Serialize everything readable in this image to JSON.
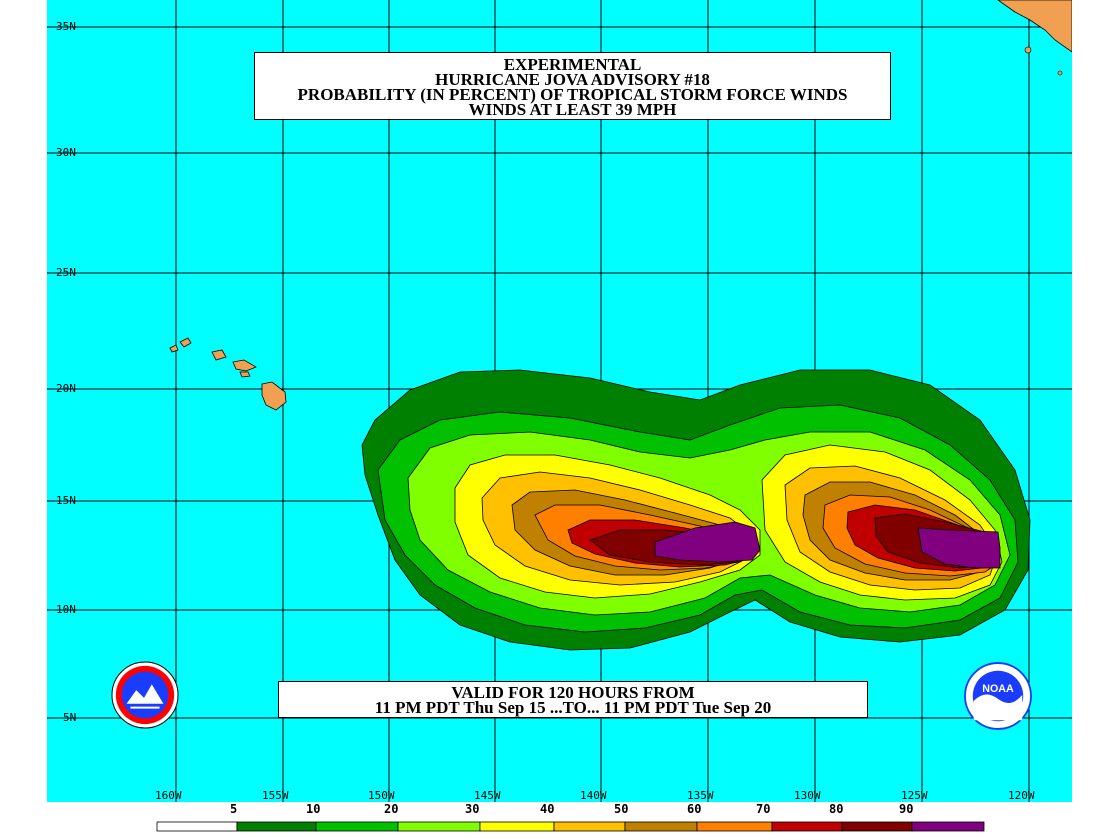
{
  "title": {
    "line1": "EXPERIMENTAL",
    "line2": "HURRICANE JOVA ADVISORY #18",
    "line3": "PROBABILITY (IN PERCENT) OF TROPICAL STORM FORCE WINDS",
    "line4": "WINDS AT LEAST 39 MPH"
  },
  "valid": {
    "line1": "VALID FOR 120 HOURS FROM",
    "line2": "11 PM PDT Thu Sep 15 ...TO... 11 PM PDT Tue Sep 20"
  },
  "latitudes": [
    "35N",
    "30N",
    "25N",
    "20N",
    "15N",
    "10N",
    "5N"
  ],
  "longitudes": [
    "160W",
    "155W",
    "150W",
    "145W",
    "140W",
    "135W",
    "130W",
    "125W",
    "120W"
  ],
  "legend": {
    "thresholds": [
      "5",
      "10",
      "20",
      "30",
      "40",
      "50",
      "60",
      "70",
      "80",
      "90"
    ],
    "colors": [
      "#ffffff",
      "#008000",
      "#00c000",
      "#80ff00",
      "#ffff00",
      "#ffc000",
      "#c08000",
      "#ff8000",
      "#c00000",
      "#800000",
      "#800080"
    ]
  },
  "colors": {
    "ocean": "#00ffff",
    "land": "#f0a050"
  },
  "logos": {
    "left": "nws-logo",
    "right": "noaa-logo"
  }
}
